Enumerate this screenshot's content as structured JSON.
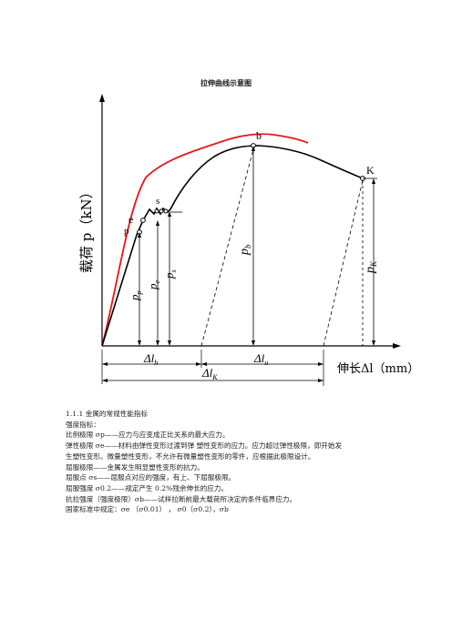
{
  "title": "拉伸曲线示意图",
  "figure": {
    "ylabel": "载荷 p（kN）",
    "xlabel": "伸长Δl（mm）",
    "points": {
      "e": "e",
      "p": "p",
      "s": "s",
      "b": "b",
      "k": "K"
    },
    "loads": {
      "pp": "p",
      "pp_sub": "p",
      "pe": "p",
      "pe_sub": "e",
      "ps": "p",
      "ps_sub": "s",
      "pb": "p",
      "pb_sub": "b",
      "pk": "p",
      "pk_sub": "K"
    },
    "dims": {
      "dlh": "Δl",
      "dlh_sub": "h",
      "dlu": "Δl",
      "dlu_sub": "u",
      "dlk": "Δl",
      "dlk_sub": "K"
    },
    "colors": {
      "curve": "#000000",
      "red_curve": "#e8161b"
    }
  },
  "text": {
    "heading": "1.1.1  金属的常规性能指标",
    "lines": [
      "强度指标：",
      "比例极限  σp——应力与应变成正比关系的最大应力。",
      "弹性极限  σe——材料由弹性变形过渡到弹  塑性变形的应力。应力超过弹性极限，即开始发",
      "生塑性变形。微量塑性变形，不允许有微量塑性变形的零件，应根据此极限设计。",
      "屈服极限——金属发生明显塑性变形的抗力。",
      "屈服点  σs——屈服点对应的强度，有上、下屈服极限。",
      "屈服强度  σ0.2——规定产生 0.2%残余伸长的应力。",
      "抗拉强度（强度极限）σb——试样拉断前最大载荷所决定的条件临界应力。",
      "国家标准中规定：σe （σ0.01） ，  σ0（σ0.2），σb"
    ]
  }
}
